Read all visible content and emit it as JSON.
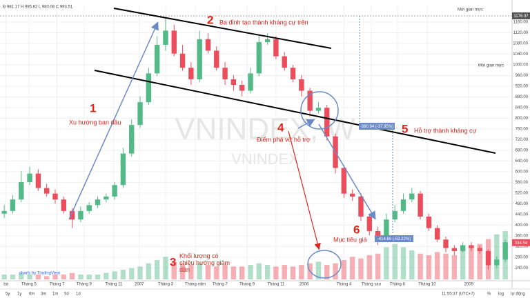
{
  "chart_data": {
    "type": "candlestick",
    "header": "Đ 981.17 H 995.62 L 980.08 C 993.51",
    "watermark": "VNINDEX, W",
    "watermark_sub": "VNINDEX",
    "credit": "charts by TradingView",
    "top_right": "Mới gian mực",
    "price_marker": "1176.37",
    "last_price": 334.54,
    "measure_1": "-380.94 (-37.95%)",
    "measure_2": "-414.69 (-53.22%)",
    "annotations": [
      {
        "num": "1",
        "text": "Xu hướng ban đầu"
      },
      {
        "num": "2",
        "text": "Ba đỉnh tạo thành kháng cự trên"
      },
      {
        "num": "3",
        "text": "Khối lượng có chiều hướng giảm dần"
      },
      {
        "num": "4",
        "text": "Điểm phá vỡ hỗ trợ"
      },
      {
        "num": "5",
        "text": "Hỗ trợ thành kháng cự"
      },
      {
        "num": "6",
        "text": "Mục tiêu giá"
      }
    ],
    "open": [
      443,
      453,
      496,
      561,
      593,
      539,
      518,
      496,
      453,
      421,
      453,
      475,
      496,
      507,
      550,
      668,
      775,
      860,
      968,
      1075,
      1128,
      1042,
      989,
      946,
      1096,
      1053,
      989,
      946,
      925,
      903,
      968,
      1085,
      1096,
      1032,
      989,
      946,
      903,
      828,
      839,
      732,
      614,
      518,
      507,
      432,
      378,
      346,
      421,
      453,
      496,
      518,
      432,
      389,
      346,
      314,
      303,
      325,
      314,
      303,
      250,
      271
    ],
    "high": [
      475,
      512,
      603,
      619,
      609,
      555,
      534,
      507,
      464,
      470,
      486,
      507,
      518,
      561,
      689,
      796,
      882,
      989,
      1107,
      1177,
      1150,
      1075,
      1010,
      1128,
      1118,
      1069,
      1010,
      962,
      941,
      989,
      1107,
      1118,
      1107,
      1048,
      1000,
      962,
      914,
      860,
      850,
      743,
      625,
      534,
      518,
      443,
      394,
      443,
      475,
      518,
      539,
      528,
      443,
      400,
      357,
      325,
      336,
      336,
      323,
      309,
      282,
      346
    ],
    "low": [
      427,
      443,
      486,
      550,
      528,
      507,
      480,
      443,
      389,
      411,
      443,
      464,
      486,
      496,
      539,
      657,
      764,
      850,
      957,
      1053,
      1032,
      978,
      925,
      935,
      1042,
      978,
      925,
      903,
      882,
      893,
      957,
      1075,
      1021,
      978,
      935,
      882,
      807,
      818,
      716,
      593,
      502,
      491,
      416,
      362,
      325,
      341,
      411,
      443,
      486,
      421,
      378,
      336,
      298,
      287,
      298,
      303,
      293,
      234,
      239,
      261
    ],
    "close": [
      453,
      496,
      561,
      593,
      539,
      518,
      496,
      453,
      421,
      453,
      475,
      496,
      507,
      550,
      668,
      775,
      860,
      968,
      1075,
      1128,
      1042,
      989,
      946,
      1096,
      1053,
      989,
      946,
      925,
      903,
      968,
      1085,
      1096,
      1032,
      989,
      946,
      903,
      828,
      839,
      732,
      614,
      518,
      507,
      432,
      378,
      346,
      421,
      453,
      496,
      518,
      432,
      389,
      346,
      314,
      303,
      325,
      314,
      303,
      250,
      271,
      336
    ],
    "volume": [
      3,
      3,
      4,
      3,
      3,
      2,
      3,
      3,
      4,
      3,
      3,
      3,
      4,
      5,
      6,
      7,
      8,
      10,
      12,
      14,
      11,
      10,
      9,
      10,
      9,
      8,
      9,
      8,
      8,
      9,
      10,
      9,
      8,
      9,
      8,
      9,
      10,
      11,
      9,
      10,
      12,
      14,
      13,
      15,
      16,
      20,
      22,
      20,
      18,
      16,
      15,
      17,
      16,
      15,
      18,
      20,
      22,
      25,
      28,
      30
    ],
    "up_color": "#53b987",
    "down_color": "#eb4d5c",
    "ylim": [
      197,
      1222
    ],
    "yticks": [
      {
        "value": 240,
        "label": "240.00"
      },
      {
        "value": 280,
        "label": "280.00"
      },
      {
        "value": 320,
        "label": "320.00"
      },
      {
        "value": 360,
        "label": "360.00"
      },
      {
        "value": 400,
        "label": "400.00"
      },
      {
        "value": 440,
        "label": "440.00"
      },
      {
        "value": 480,
        "label": "480.00"
      },
      {
        "value": 520,
        "label": "520.00"
      },
      {
        "value": 560,
        "label": "560.00"
      },
      {
        "value": 600,
        "label": "600.00"
      },
      {
        "value": 640,
        "label": "640.00"
      },
      {
        "value": 680,
        "label": "680.00"
      },
      {
        "value": 720,
        "label": "720.00"
      },
      {
        "value": 760,
        "label": "760.00"
      },
      {
        "value": 800,
        "label": "800.00"
      },
      {
        "value": 840,
        "label": "840.00"
      },
      {
        "value": 880,
        "label": "880.00"
      },
      {
        "value": 920,
        "label": "920.00"
      },
      {
        "value": 960,
        "label": "960.00"
      },
      {
        "value": 1000,
        "label": "1000.00"
      },
      {
        "value": 1040,
        "label": "1040.00"
      },
      {
        "value": 1080,
        "label": "1080.00"
      },
      {
        "value": 1120,
        "label": "1120.00"
      },
      {
        "value": 1160,
        "label": "1160.00"
      }
    ],
    "xlim": [
      -0.5,
      59.8
    ],
    "xticks": [
      {
        "value": 0.2,
        "label": "ba"
      },
      {
        "value": 2.9,
        "label": "Tháng 5"
      },
      {
        "value": 6.2,
        "label": "Tháng 7"
      },
      {
        "value": 9.4,
        "label": "Tháng 9"
      },
      {
        "value": 12.9,
        "label": "Tháng 11"
      },
      {
        "value": 15.9,
        "label": "2007"
      },
      {
        "value": 19,
        "label": "Tháng 3"
      },
      {
        "value": 22.5,
        "label": "Tháng năm"
      },
      {
        "value": 25.4,
        "label": "Tháng 7"
      },
      {
        "value": 28.6,
        "label": "Tháng 9"
      },
      {
        "value": 32,
        "label": "Tháng 11"
      },
      {
        "value": 35.3,
        "label": "2008"
      },
      {
        "value": 40,
        "label": "Tháng 4"
      },
      {
        "value": 43.2,
        "label": "Tháng sau"
      },
      {
        "value": 46.3,
        "label": "Tháng 8"
      },
      {
        "value": 49.8,
        "label": "Tháng 10"
      },
      {
        "value": 54.7,
        "label": "2009"
      }
    ],
    "grid": true,
    "toolbar": [
      "5y",
      "1y",
      "6m",
      "3m",
      "1m",
      "5d",
      "1d"
    ],
    "toolbar_right": [
      "11:55:37 (UTC+7)",
      "%",
      "log",
      "tự động"
    ]
  }
}
